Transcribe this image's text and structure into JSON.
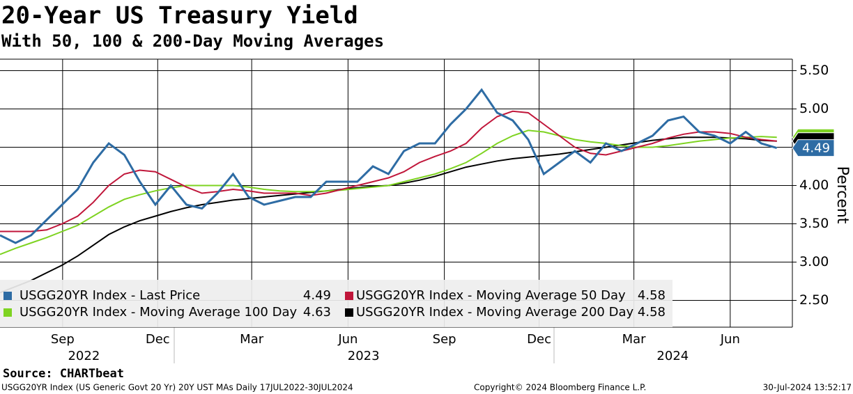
{
  "chart_data": {
    "type": "line",
    "title": "20-Year US Treasury Yield",
    "subtitle": "With 50, 100 & 200-Day Moving Averages",
    "y_axis_label": "Percent",
    "source": "Source: CHARTbeat",
    "footer_left": "USGG20YR Index (US Generic Govt 20 Yr) 20Y UST MAs  Daily 17JUL2022-30JUL2024",
    "footer_center": "Copyright© 2024 Bloomberg Finance L.P.",
    "footer_right": "30-Jul-2024 13:52:17",
    "xlim": [
      0,
      51
    ],
    "xticks": [
      {
        "value": 4.03,
        "label": "Sep"
      },
      {
        "value": 10.15,
        "label": "Dec"
      },
      {
        "value": 16.2,
        "label": "Mar"
      },
      {
        "value": 22.4,
        "label": "Jun"
      },
      {
        "value": 28.6,
        "label": "Sep"
      },
      {
        "value": 34.7,
        "label": "Dec"
      },
      {
        "value": 40.8,
        "label": "Mar"
      },
      {
        "value": 47.0,
        "label": "Jun"
      }
    ],
    "year_ticks": [
      {
        "value": 5.4,
        "label": "2022"
      },
      {
        "value": 23.4,
        "label": "2023"
      },
      {
        "value": 43.3,
        "label": "2024"
      }
    ],
    "ylim": [
      2.15,
      5.65
    ],
    "yticks": [
      {
        "value": 2.5,
        "label": "2.50"
      },
      {
        "value": 3.0,
        "label": "3.00"
      },
      {
        "value": 3.5,
        "label": "3.50"
      },
      {
        "value": 4.0,
        "label": "4.00"
      },
      {
        "value": 4.5,
        "label": "4.50"
      },
      {
        "value": 5.0,
        "label": "5.00"
      },
      {
        "value": 5.5,
        "label": "5.50"
      }
    ],
    "grid": true,
    "series": [
      {
        "name": "USGG20YR Index - Last Price",
        "color": "#2e6ca4",
        "values": [
          3.35,
          3.25,
          3.35,
          3.55,
          3.75,
          3.95,
          4.3,
          4.55,
          4.4,
          4.05,
          3.75,
          4.0,
          3.75,
          3.7,
          3.9,
          4.15,
          3.85,
          3.75,
          3.8,
          3.85,
          3.85,
          4.05,
          4.05,
          4.05,
          4.25,
          4.15,
          4.45,
          4.55,
          4.55,
          4.8,
          5.0,
          5.25,
          4.95,
          4.85,
          4.6,
          4.15,
          4.3,
          4.45,
          4.3,
          4.55,
          4.45,
          4.55,
          4.65,
          4.85,
          4.9,
          4.7,
          4.65,
          4.55,
          4.7,
          4.55,
          4.49
        ]
      },
      {
        "name": "USGG20YR Index - Moving Average 50 Day",
        "color": "#c0163a",
        "values": [
          3.4,
          3.4,
          3.4,
          3.42,
          3.5,
          3.6,
          3.78,
          4.0,
          4.15,
          4.2,
          4.18,
          4.08,
          3.98,
          3.9,
          3.92,
          3.95,
          3.93,
          3.9,
          3.9,
          3.9,
          3.87,
          3.9,
          3.95,
          4.0,
          4.05,
          4.1,
          4.18,
          4.3,
          4.38,
          4.45,
          4.55,
          4.75,
          4.9,
          4.97,
          4.95,
          4.8,
          4.65,
          4.5,
          4.42,
          4.4,
          4.45,
          4.5,
          4.55,
          4.62,
          4.67,
          4.7,
          4.7,
          4.68,
          4.63,
          4.6,
          4.58
        ]
      },
      {
        "name": "USGG20YR Index - Moving Average 100 Day",
        "color": "#7ed321",
        "values": [
          3.1,
          3.18,
          3.25,
          3.32,
          3.4,
          3.48,
          3.6,
          3.72,
          3.82,
          3.88,
          3.93,
          3.97,
          4.0,
          4.0,
          4.0,
          4.0,
          3.98,
          3.95,
          3.93,
          3.92,
          3.92,
          3.93,
          3.94,
          3.96,
          3.98,
          4.0,
          4.05,
          4.1,
          4.15,
          4.22,
          4.3,
          4.42,
          4.55,
          4.65,
          4.72,
          4.7,
          4.65,
          4.6,
          4.57,
          4.55,
          4.52,
          4.5,
          4.5,
          4.52,
          4.55,
          4.58,
          4.6,
          4.62,
          4.63,
          4.64,
          4.63
        ]
      },
      {
        "name": "USGG20YR Index - Moving Average 200 Day",
        "color": "#000000",
        "values": [
          2.6,
          2.68,
          2.76,
          2.86,
          2.96,
          3.08,
          3.22,
          3.36,
          3.46,
          3.54,
          3.6,
          3.66,
          3.71,
          3.75,
          3.78,
          3.81,
          3.83,
          3.85,
          3.87,
          3.89,
          3.91,
          3.93,
          3.95,
          3.97,
          3.99,
          4.0,
          4.03,
          4.07,
          4.12,
          4.18,
          4.24,
          4.28,
          4.32,
          4.35,
          4.37,
          4.39,
          4.41,
          4.44,
          4.47,
          4.5,
          4.53,
          4.56,
          4.59,
          4.61,
          4.63,
          4.63,
          4.63,
          4.62,
          4.61,
          4.59,
          4.58
        ]
      }
    ]
  }
}
